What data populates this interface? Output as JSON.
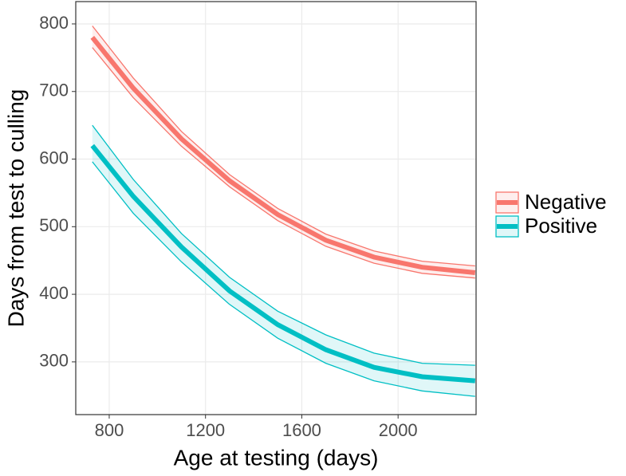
{
  "chart_data": {
    "type": "line",
    "xlabel": "Age at testing (days)",
    "ylabel": "Days from test to culling",
    "x": [
      730,
      900,
      1100,
      1300,
      1500,
      1700,
      1900,
      2100,
      2320
    ],
    "series": [
      {
        "name": "Negative",
        "color": "#f8766d",
        "values": [
          780,
          705,
          630,
          568,
          518,
          480,
          455,
          440,
          432
        ],
        "upper": [
          797,
          720,
          641,
          577,
          527,
          489,
          464,
          449,
          442
        ],
        "lower": [
          765,
          691,
          619,
          559,
          509,
          471,
          446,
          431,
          424
        ]
      },
      {
        "name": "Positive",
        "color": "#00bfc4",
        "values": [
          620,
          545,
          470,
          405,
          355,
          318,
          292,
          278,
          272
        ],
        "upper": [
          650,
          570,
          490,
          425,
          375,
          340,
          313,
          298,
          295
        ],
        "lower": [
          596,
          520,
          448,
          385,
          335,
          298,
          272,
          257,
          249
        ]
      }
    ],
    "xlim": [
      661,
      2324
    ],
    "xticks": [
      800,
      1200,
      1600,
      2000
    ],
    "ylim": [
      222,
      833
    ],
    "yticks": [
      300,
      400,
      500,
      600,
      700,
      800
    ],
    "grid": true,
    "legend": "right"
  }
}
